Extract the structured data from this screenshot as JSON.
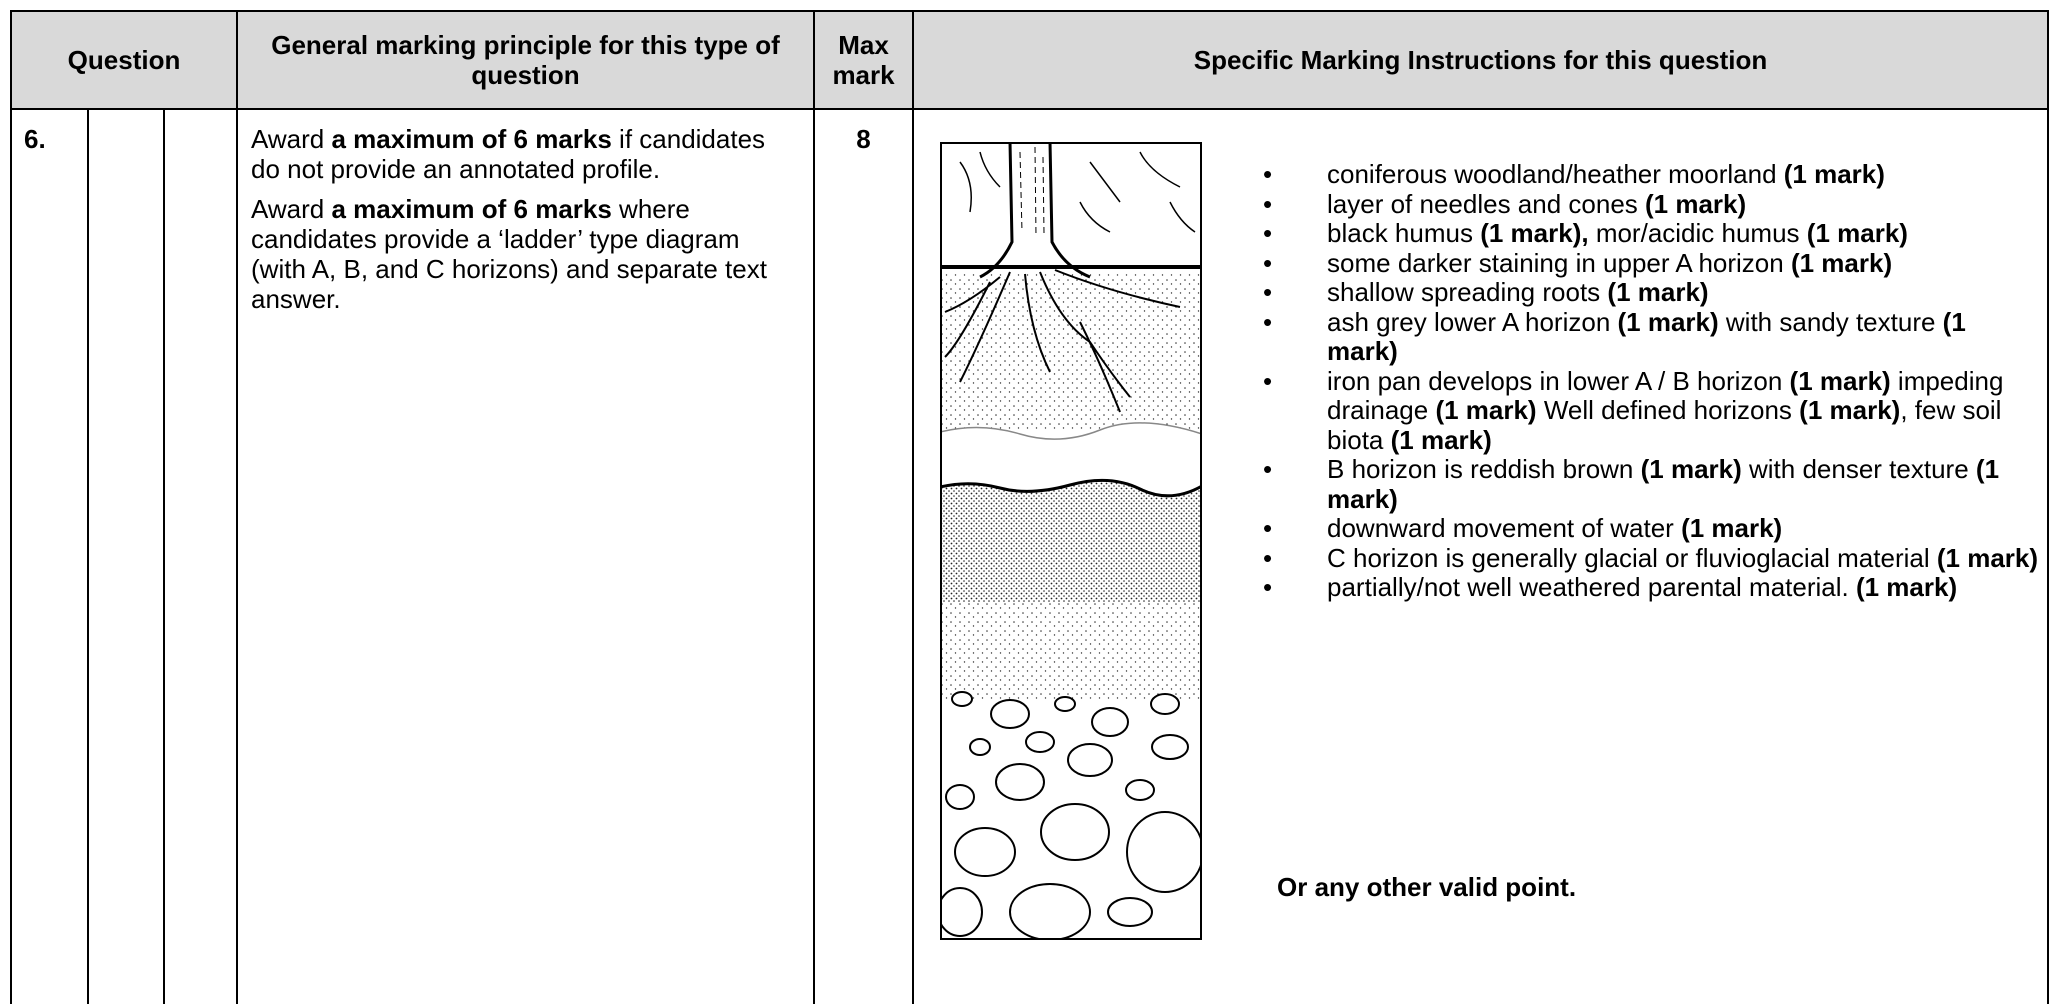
{
  "header": {
    "question": "Question",
    "principle": "General marking principle for this type of question",
    "max_mark": "Max mark",
    "instructions": "Specific Marking Instructions for this question"
  },
  "row": {
    "question": "6.",
    "max_mark": 8,
    "principle": [
      [
        "Award ",
        {
          "text": "a maximum of 6 marks",
          "bold": true
        },
        " if candidates do not provide an annotated profile."
      ],
      [
        "Award ",
        {
          "text": "a maximum of 6 marks",
          "bold": true
        },
        " where candidates provide a ‘ladder’ type diagram (with A, B, and C horizons) and separate text answer."
      ]
    ],
    "bullets": [
      [
        "coniferous woodland/heather moorland ",
        {
          "text": "(1 mark)",
          "bold": true
        }
      ],
      [
        "layer of needles and cones ",
        {
          "text": "(1 mark)",
          "bold": true
        }
      ],
      [
        "black humus ",
        {
          "text": "(1 mark),",
          "bold": true
        },
        " mor/acidic humus ",
        {
          "text": "(1 mark)",
          "bold": true
        }
      ],
      [
        "some darker staining in upper A horizon ",
        {
          "text": "(1 mark)",
          "bold": true
        }
      ],
      [
        "shallow spreading roots ",
        {
          "text": "(1 mark)",
          "bold": true
        }
      ],
      [
        "ash grey lower A horizon ",
        {
          "text": "(1 mark)",
          "bold": true
        },
        " with sandy texture ",
        {
          "text": "(1 mark)",
          "bold": true
        }
      ],
      [
        "iron pan develops in lower A / B horizon ",
        {
          "text": "(1 mark)",
          "bold": true
        },
        " impeding drainage ",
        {
          "text": "(1 mark)",
          "bold": true
        },
        " Well defined horizons ",
        {
          "text": "(1 mark)",
          "bold": true
        },
        ", few soil biota ",
        {
          "text": "(1 mark)",
          "bold": true
        }
      ],
      [
        "B horizon is reddish brown ",
        {
          "text": "(1 mark)",
          "bold": true
        },
        " with denser texture ",
        {
          "text": "(1 mark)",
          "bold": true
        }
      ],
      [
        "downward movement of water ",
        {
          "text": "(1 mark)",
          "bold": true
        }
      ],
      [
        "C horizon is generally glacial or fluvioglacial material ",
        {
          "text": "(1 mark)",
          "bold": true
        }
      ],
      [
        "partially/not well weathered parental material. ",
        {
          "text": "(1 mark)",
          "bold": true
        }
      ]
    ],
    "closing": "Or any other valid point."
  }
}
